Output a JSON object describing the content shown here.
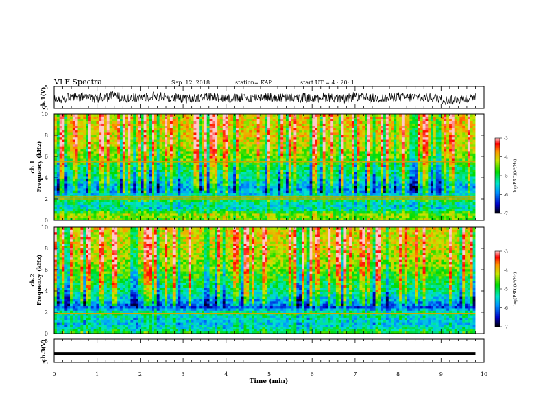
{
  "header": {
    "title": "VLF Spectra",
    "date": "Sep. 12, 2018",
    "station": "station= KAP",
    "start_ut": "start  UT =   4 : 20: 1"
  },
  "chart_data": [
    {
      "type": "line",
      "panel": "ch1-waveform",
      "ylabel": "ch.1(V)",
      "ylim": [
        -5,
        5
      ],
      "y_tick_labels": [
        "5",
        "-5"
      ],
      "xlim": [
        0,
        10
      ],
      "trace_color": "#000000",
      "note": "noisy waveform oscillating roughly between -3 and 3 V"
    },
    {
      "type": "heatmap",
      "panel": "ch1-spectrogram",
      "ylabel_top": "ch.1",
      "ylabel": "Frequency  (kHz)",
      "ylim": [
        0,
        10
      ],
      "y_tick_labels": [
        "0",
        "2",
        "4",
        "6",
        "8",
        "10"
      ],
      "xlim": [
        0,
        10
      ],
      "data_end_min": 9.8,
      "colorbar": {
        "label": "log(PSD)(V²/Hz)",
        "ticks": [
          "-3",
          "-4",
          "-5",
          "-6",
          "-7"
        ],
        "range": [
          -7,
          -3
        ]
      },
      "band_profile": [
        {
          "f": 0.0,
          "level": -4.6
        },
        {
          "f": 0.5,
          "level": -4.4
        },
        {
          "f": 1.0,
          "level": -5.3
        },
        {
          "f": 1.5,
          "level": -5.5
        },
        {
          "f": 2.0,
          "level": -4.8
        },
        {
          "f": 2.5,
          "level": -5.6
        },
        {
          "f": 3.0,
          "level": -5.9
        },
        {
          "f": 4.0,
          "level": -5.3
        },
        {
          "f": 5.0,
          "level": -5.0
        },
        {
          "f": 6.0,
          "level": -4.5
        },
        {
          "f": 7.0,
          "level": -4.2
        },
        {
          "f": 8.0,
          "level": -4.1
        },
        {
          "f": 9.0,
          "level": -4.0
        },
        {
          "f": 10.0,
          "level": -4.0
        }
      ],
      "lines_khz": [
        2.0,
        2.2,
        5.5
      ]
    },
    {
      "type": "heatmap",
      "panel": "ch2-spectrogram",
      "ylabel_top": "ch.2",
      "ylabel": "Frequency  (kHz)",
      "ylim": [
        0,
        10
      ],
      "y_tick_labels": [
        "0",
        "2",
        "4",
        "6",
        "8",
        "10"
      ],
      "xlim": [
        0,
        10
      ],
      "data_end_min": 9.8,
      "colorbar": {
        "label": "log(PSD)(V²/Hz)",
        "ticks": [
          "-3",
          "-4",
          "-5",
          "-6",
          "-7"
        ],
        "range": [
          -7,
          -3
        ]
      },
      "band_profile": [
        {
          "f": 0.0,
          "level": -4.8
        },
        {
          "f": 0.5,
          "level": -5.4
        },
        {
          "f": 1.0,
          "level": -5.6
        },
        {
          "f": 1.5,
          "level": -5.5
        },
        {
          "f": 2.0,
          "level": -5.2
        },
        {
          "f": 2.5,
          "level": -6.2
        },
        {
          "f": 3.0,
          "level": -5.8
        },
        {
          "f": 4.0,
          "level": -5.2
        },
        {
          "f": 5.0,
          "level": -4.9
        },
        {
          "f": 6.0,
          "level": -4.6
        },
        {
          "f": 7.0,
          "level": -4.3
        },
        {
          "f": 8.0,
          "level": -4.2
        },
        {
          "f": 9.0,
          "level": -4.1
        },
        {
          "f": 10.0,
          "level": -4.1
        }
      ],
      "lines_khz": [
        1.9
      ]
    },
    {
      "type": "line",
      "panel": "ch3-waveform",
      "ylabel": "ch.3(V)",
      "ylim": [
        -5,
        5
      ],
      "y_tick_labels": [
        "5",
        "-5"
      ],
      "xlim": [
        0,
        10
      ],
      "constant_value": -1.2,
      "trace_color": "#000000"
    }
  ],
  "x_axis": {
    "label": "Time  (min)",
    "range": [
      0,
      10
    ],
    "tick_labels": [
      "0",
      "1",
      "2",
      "3",
      "4",
      "5",
      "6",
      "7",
      "8",
      "9",
      "10"
    ]
  }
}
